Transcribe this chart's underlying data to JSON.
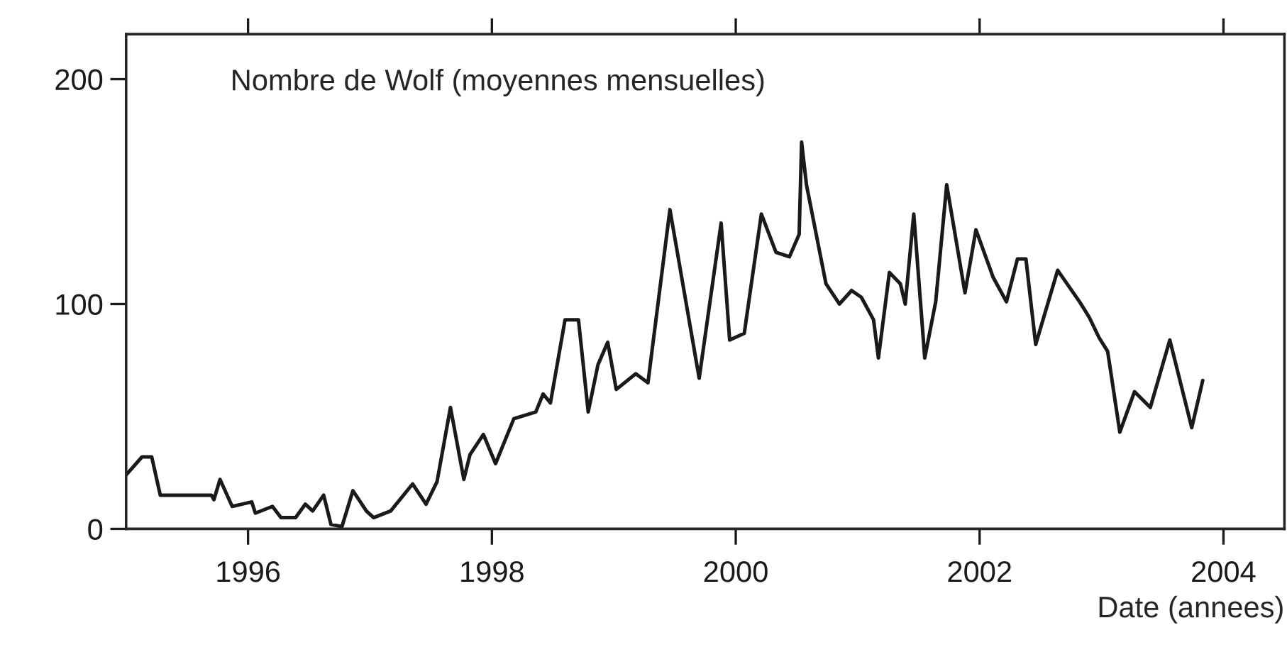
{
  "chart_data": {
    "type": "line",
    "title": "Nombre de Wolf (moyennes mensuelles)",
    "xlabel": "Date (annees)",
    "xlim": [
      1995,
      2004.5
    ],
    "ylim": [
      0,
      220
    ],
    "xticks": [
      1996,
      1998,
      2000,
      2002,
      2004
    ],
    "yticks": [
      0,
      100,
      200
    ],
    "grid": false,
    "legend": false,
    "series": [
      {
        "color": "#1a1a1a",
        "x": [
          1995.0,
          1995.13,
          1995.21,
          1995.28,
          1995.5,
          1995.7,
          1995.72,
          1995.77,
          1995.87,
          1995.95,
          1996.03,
          1996.06,
          1996.2,
          1996.27,
          1996.39,
          1996.47,
          1996.53,
          1996.62,
          1996.68,
          1996.77,
          1996.86,
          1996.97,
          1997.03,
          1997.17,
          1997.35,
          1997.46,
          1997.55,
          1997.66,
          1997.77,
          1997.82,
          1997.93,
          1998.03,
          1998.18,
          1998.36,
          1998.42,
          1998.48,
          1998.6,
          1998.71,
          1998.79,
          1998.87,
          1998.95,
          1999.02,
          1999.18,
          1999.28,
          1999.46,
          1999.7,
          1999.88,
          1999.95,
          2000.07,
          2000.21,
          2000.33,
          2000.44,
          2000.52,
          2000.54,
          2000.58,
          2000.74,
          2000.85,
          2000.95,
          2001.03,
          2001.13,
          2001.17,
          2001.26,
          2001.35,
          2001.39,
          2001.46,
          2001.55,
          2001.64,
          2001.73,
          2001.88,
          2001.97,
          2002.11,
          2002.22,
          2002.31,
          2002.38,
          2002.46,
          2002.64,
          2002.82,
          2002.9,
          2002.98,
          2003.05,
          2003.15,
          2003.27,
          2003.4,
          2003.56,
          2003.74,
          2003.83
        ],
        "values": [
          24,
          32,
          32,
          15,
          15,
          15,
          13,
          22,
          10,
          11,
          12,
          7,
          10,
          5,
          5,
          11,
          8,
          15,
          2,
          1,
          17,
          8,
          5,
          8,
          20,
          11,
          21,
          54,
          22,
          33,
          42,
          29,
          49,
          52,
          60,
          56,
          93,
          93,
          52,
          73,
          83,
          62,
          69,
          65,
          142,
          67,
          136,
          84,
          87,
          140,
          123,
          121,
          131,
          172,
          153,
          109,
          100,
          106,
          103,
          93,
          76,
          114,
          109,
          100,
          140,
          76,
          101,
          153,
          105,
          133,
          112,
          101,
          120,
          120,
          82,
          115,
          101,
          94,
          85,
          79,
          43,
          61,
          54,
          84,
          45,
          66
        ]
      }
    ]
  }
}
